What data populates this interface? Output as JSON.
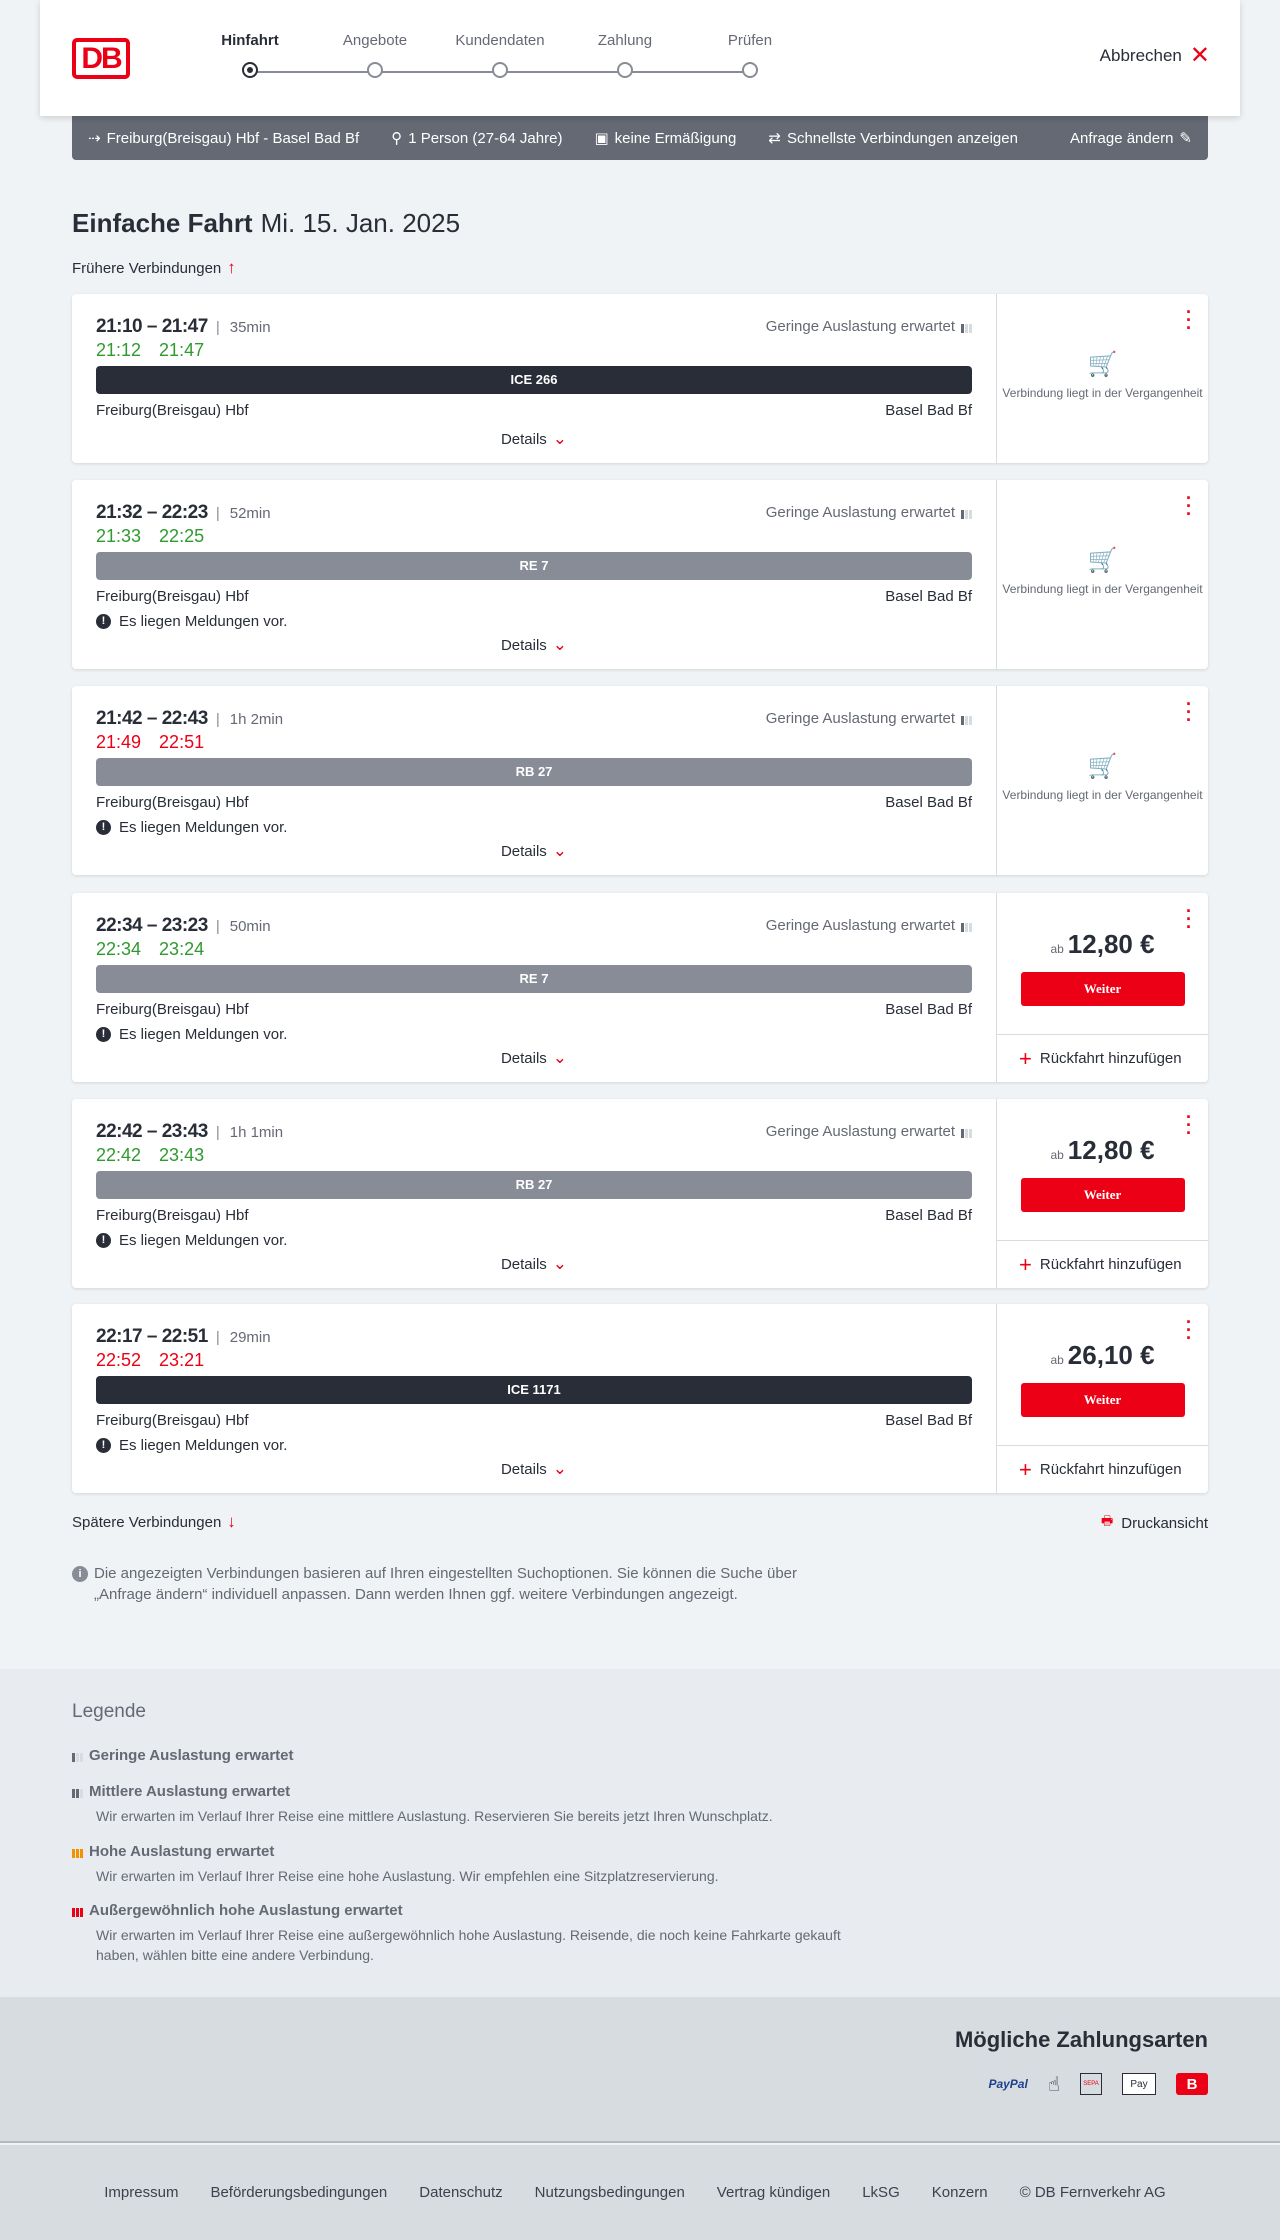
{
  "header": {
    "logo": "DB",
    "steps": [
      "Hinfahrt",
      "Angebote",
      "Kundendaten",
      "Zahlung",
      "Prüfen"
    ],
    "active_step": 0,
    "cancel": "Abbrechen"
  },
  "search": {
    "route": "Freiburg(Breisgau) Hbf - Basel Bad Bf",
    "persons": "1 Person (27-64 Jahre)",
    "discount": "keine Ermäßigung",
    "fastest": "Schnellste Verbindungen anzeigen",
    "change": "Anfrage ändern"
  },
  "title": {
    "type": "Einfache Fahrt",
    "date": "Mi. 15. Jan. 2025"
  },
  "earlier": "Frühere Verbindungen",
  "later": "Spätere Verbindungen",
  "print": "Druckansicht",
  "colors": {
    "accent": "#ec0016",
    "dark_bar": "#282d37",
    "grey_bar": "#878c96",
    "ontime": "#2f9a2f",
    "delay": "#ec0016"
  },
  "common": {
    "load": "Geringe Auslastung erwartet",
    "message": "Es liegen Meldungen vor.",
    "details": "Details",
    "past": "Verbindung liegt in der Vergangenheit",
    "from": "Freiburg(Breisgau) Hbf",
    "to": "Basel Bad Bf",
    "price_prefix": "ab",
    "continue": "Weiter",
    "return": "Rückfahrt hinzufügen"
  },
  "connections": [
    {
      "time": "21:10 – 21:47",
      "duration": "35min",
      "rt_dep": "21:12",
      "rt_arr": "21:47",
      "rt_status": "green",
      "train": "ICE 266",
      "bar": "dark",
      "message": false,
      "past": true
    },
    {
      "time": "21:32 – 22:23",
      "duration": "52min",
      "rt_dep": "21:33",
      "rt_arr": "22:25",
      "rt_status": "green",
      "train": "RE 7",
      "bar": "grey",
      "message": true,
      "past": true
    },
    {
      "time": "21:42 – 22:43",
      "duration": "1h 2min",
      "rt_dep": "21:49",
      "rt_arr": "22:51",
      "rt_status": "red",
      "train": "RB 27",
      "bar": "grey",
      "message": true,
      "past": true
    },
    {
      "time": "22:34 – 23:23",
      "duration": "50min",
      "rt_dep": "22:34",
      "rt_arr": "23:24",
      "rt_status": "green",
      "train": "RE 7",
      "bar": "grey",
      "message": true,
      "past": false,
      "price": "12,80 €"
    },
    {
      "time": "22:42 – 23:43",
      "duration": "1h 1min",
      "rt_dep": "22:42",
      "rt_arr": "23:43",
      "rt_status": "green",
      "train": "RB 27",
      "bar": "grey",
      "message": true,
      "past": false,
      "price": "12,80 €"
    },
    {
      "time": "22:17 – 22:51",
      "duration": "29min",
      "rt_dep": "22:52",
      "rt_arr": "23:21",
      "rt_status": "red",
      "train": "ICE 1171",
      "bar": "dark",
      "message": true,
      "past": false,
      "price": "26,10 €",
      "no_load": true
    }
  ],
  "info": "Die angezeigten Verbindungen basieren auf Ihren eingestellten Suchoptionen. Sie können die Suche über „Anfrage ändern“ individuell anpassen. Dann werden Ihnen ggf. weitere Verbindungen angezeigt.",
  "legend": {
    "title": "Legende",
    "items": [
      {
        "title": "Geringe Auslastung erwartet",
        "text": ""
      },
      {
        "title": "Mittlere Auslastung erwartet",
        "text": "Wir erwarten im Verlauf Ihrer Reise eine mittlere Auslastung. Reservieren Sie bereits jetzt Ihren Wunschplatz."
      },
      {
        "title": "Hohe Auslastung erwartet",
        "text": "Wir erwarten im Verlauf Ihrer Reise eine hohe Auslastung. Wir empfehlen eine Sitzplatzreservierung."
      },
      {
        "title": "Außergewöhnlich hohe Auslastung erwartet",
        "text": "Wir erwarten im Verlauf Ihrer Reise eine außergewöhnlich hohe Auslastung. Reisende, die noch keine Fahrkarte gekauft haben, wählen bitte eine andere Verbindung."
      }
    ]
  },
  "payment": {
    "title": "Mögliche Zahlungsarten",
    "methods": [
      "PayPal",
      "Kreditkarte",
      "SEPA",
      "Apple Pay",
      "Bahn Bonus"
    ]
  },
  "footer": [
    "Impressum",
    "Beförderungsbedingungen",
    "Datenschutz",
    "Nutzungsbedingungen",
    "Vertrag kündigen",
    "LkSG",
    "Konzern",
    "© DB Fernverkehr AG"
  ]
}
